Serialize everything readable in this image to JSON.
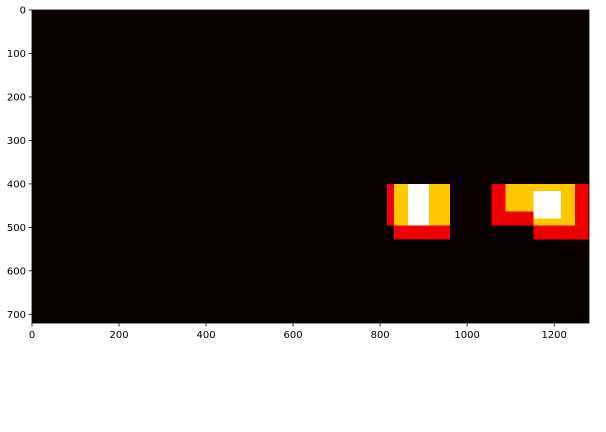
{
  "chart_data": {
    "type": "heatmap",
    "title": "",
    "xlabel": "",
    "ylabel": "",
    "xlim": [
      0,
      1280
    ],
    "ylim": [
      720,
      0
    ],
    "x_ticks": [
      0,
      200,
      400,
      600,
      800,
      1000,
      1200
    ],
    "y_ticks": [
      0,
      100,
      200,
      300,
      400,
      500,
      600,
      700
    ],
    "background_color": "#0b0000",
    "grid": false,
    "colors": {
      "level_1": "#ee0000",
      "level_2": "#ffc800",
      "level_3": "#ffffff"
    },
    "regions": [
      {
        "x": [
          816,
          960
        ],
        "y": [
          400,
          496
        ],
        "level": 1
      },
      {
        "x": [
          832,
          960
        ],
        "y": [
          496,
          528
        ],
        "level": 1
      },
      {
        "x": [
          832,
          960
        ],
        "y": [
          400,
          496
        ],
        "level": 2
      },
      {
        "x": [
          864,
          912
        ],
        "y": [
          400,
          496
        ],
        "level": 3
      },
      {
        "x": [
          1056,
          1280
        ],
        "y": [
          400,
          496
        ],
        "level": 1
      },
      {
        "x": [
          1152,
          1280
        ],
        "y": [
          496,
          528
        ],
        "level": 1
      },
      {
        "x": [
          1088,
          1248
        ],
        "y": [
          400,
          464
        ],
        "level": 2
      },
      {
        "x": [
          1152,
          1248
        ],
        "y": [
          464,
          496
        ],
        "level": 2
      },
      {
        "x": [
          1152,
          1216
        ],
        "y": [
          416,
          480
        ],
        "level": 3
      }
    ]
  }
}
